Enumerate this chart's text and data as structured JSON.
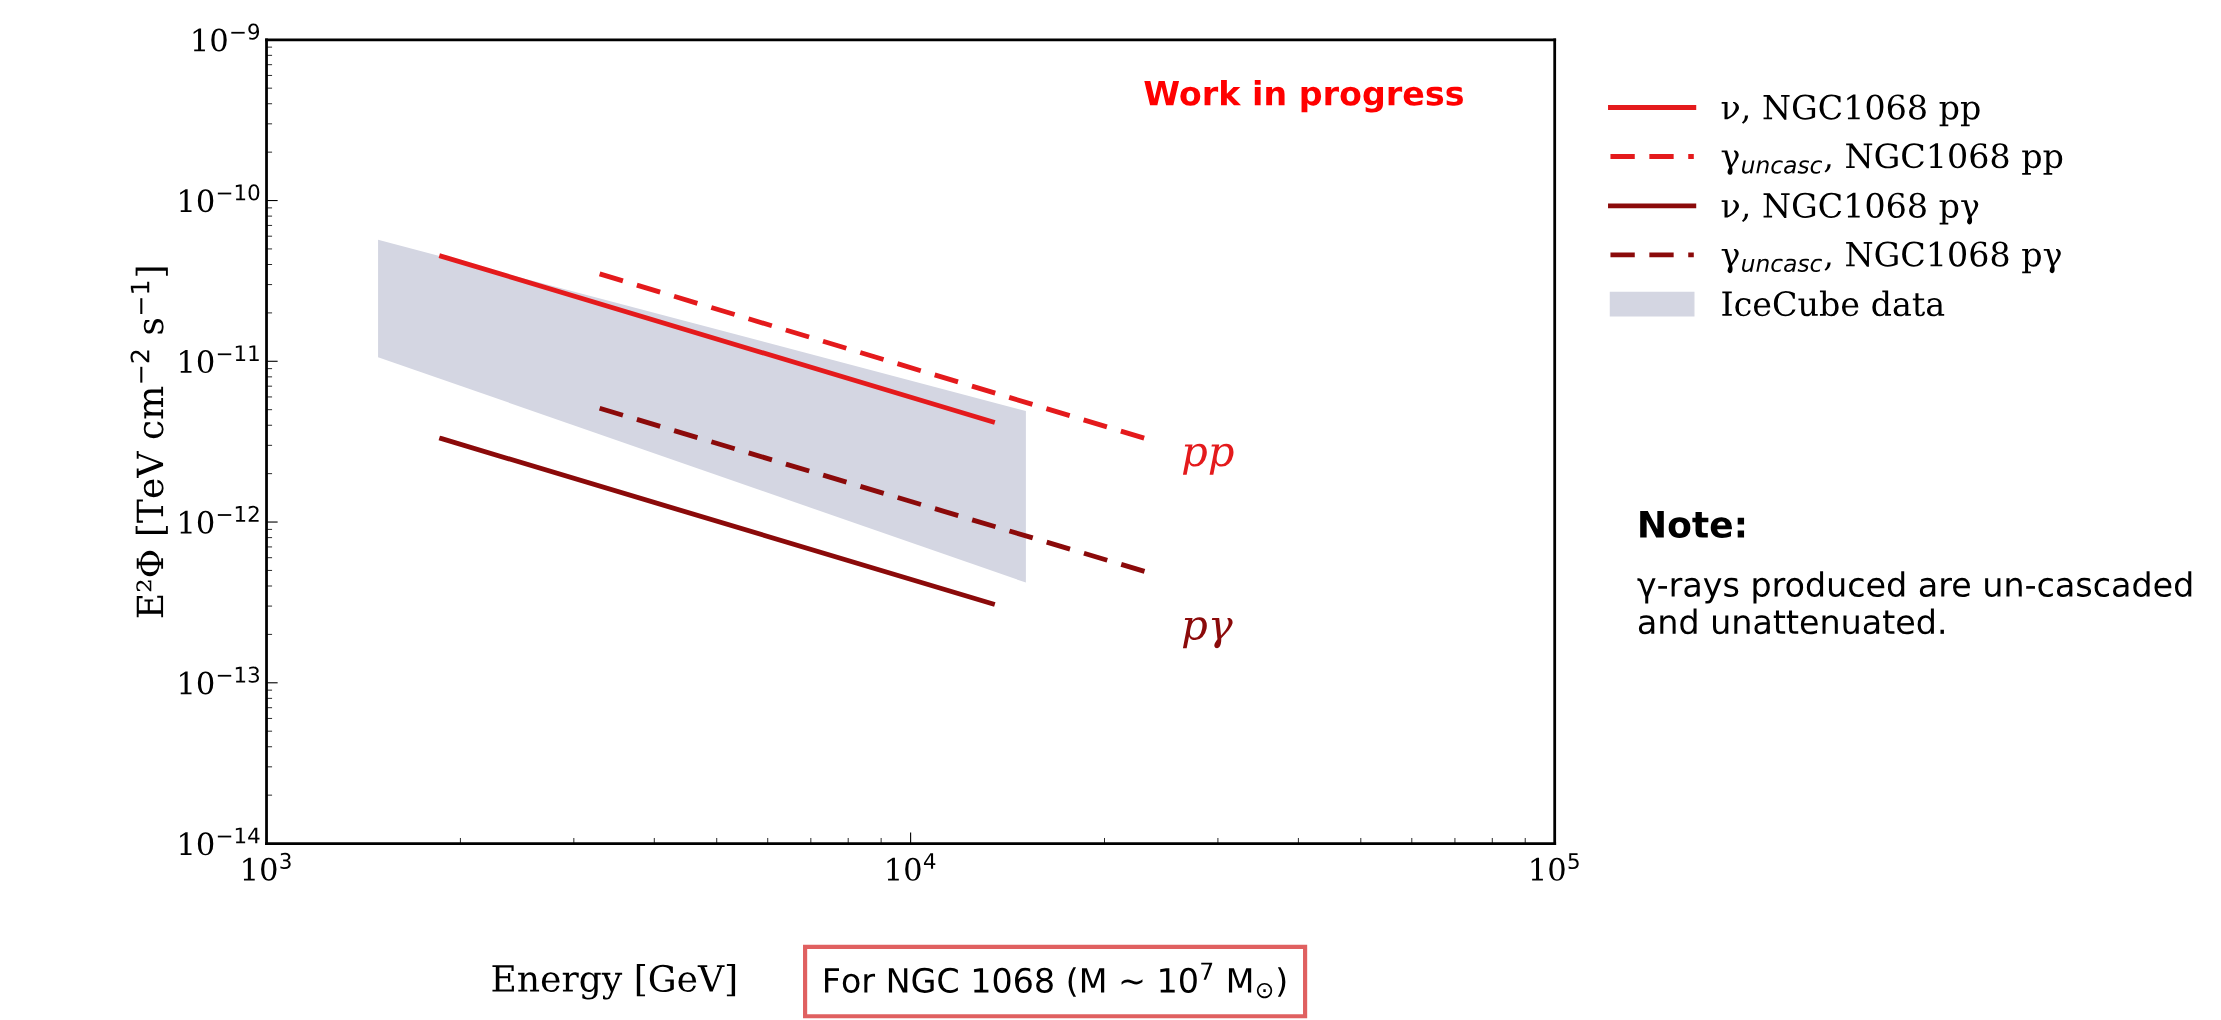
{
  "chart_data": {
    "type": "line",
    "xlabel": "Energy [GeV]",
    "ylabel": "E²Φ [TeV cm$^{−2}$ s$^{−1}$]",
    "log": "xy",
    "xlim": [
      1000,
      100000
    ],
    "xticks": [
      {
        "value": 1000,
        "label": "10$^{3}$"
      },
      {
        "value": 10000,
        "label": "10$^{4}$"
      },
      {
        "value": 100000,
        "label": "10$^{5}$"
      }
    ],
    "ylim": [
      1e-14,
      1e-09
    ],
    "yticks": [
      {
        "value": 1e-14,
        "label": "10$^{−14}$"
      },
      {
        "value": 1e-13,
        "label": "10$^{−13}$"
      },
      {
        "value": 1e-12,
        "label": "10$^{−12}$"
      },
      {
        "value": 1e-11,
        "label": "10$^{−11}$"
      },
      {
        "value": 1e-10,
        "label": "10$^{−10}$"
      },
      {
        "value": 1e-09,
        "label": "10$^{−9}$"
      }
    ],
    "grid": false,
    "legend": "right",
    "series": [
      {
        "name": "ν, NGC1068 pp",
        "color": "#e41a1c",
        "line_style": "solid",
        "x": [
          1870,
          13400
        ],
        "values": [
          4.5e-11,
          4.2e-12
        ]
      },
      {
        "name": "γ$_{uncasc}$, NGC1068 pp",
        "color": "#e41a1c",
        "line_style": "dashed",
        "x": [
          3290,
          23200
        ],
        "values": [
          3.5e-11,
          3.3e-12
        ]
      },
      {
        "name": "ν, NGC1068 pγ",
        "color": "#8b0a0a",
        "line_style": "solid",
        "x": [
          1870,
          13400
        ],
        "values": [
          3.3e-12,
          3.1e-13
        ]
      },
      {
        "name": "γ$_{uncasc}$, NGC1068 pγ",
        "color": "#8b0a0a",
        "line_style": "dashed",
        "x": [
          3290,
          23200
        ],
        "values": [
          5.1e-12,
          4.9e-13
        ]
      },
      {
        "name": "IceCube data",
        "type": "area",
        "color": "#d4d6e2",
        "x": [
          1490,
          15100,
          15100,
          1490
        ],
        "values": [
          5.7e-11,
          4.9e-12,
          4.2e-13,
          1.06e-11
        ]
      }
    ],
    "annotations": [
      "pp",
      "pγ",
      "Work in progress",
      "Note:",
      "γ-rays produced are un-cascaded and unattenuated.",
      "For NGC 1068 (M ∼ 10$^{7}$ M$_{⊙}$)"
    ]
  }
}
